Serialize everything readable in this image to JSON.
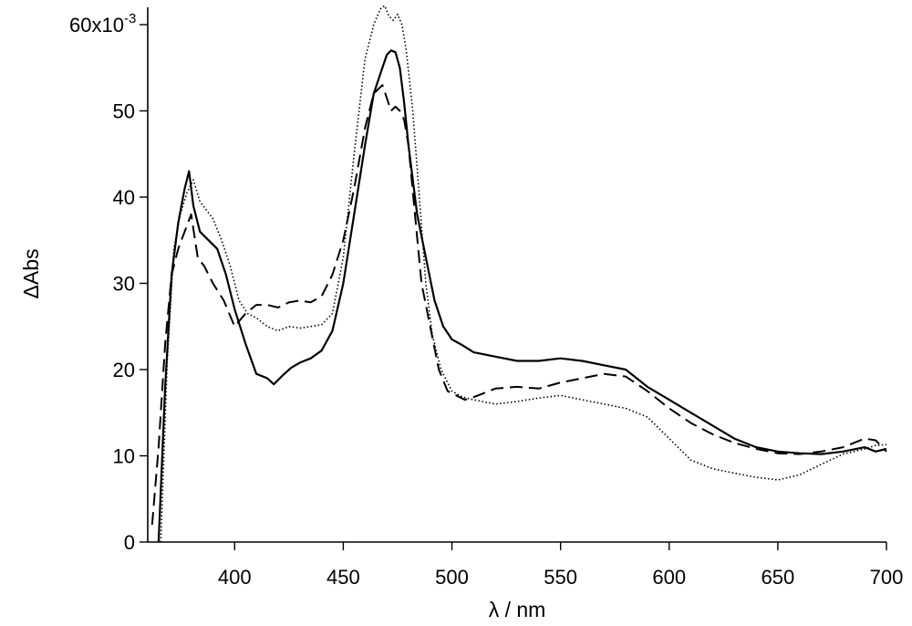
{
  "chart_data": {
    "type": "line",
    "xlabel": "λ / nm",
    "ylabel": "ΔAbs",
    "xlim": [
      360,
      700
    ],
    "ylim": [
      0,
      0.06
    ],
    "x_ticks": [
      400,
      450,
      500,
      550,
      600,
      650,
      700
    ],
    "y_ticks": [
      {
        "value": 0,
        "label": "0"
      },
      {
        "value": 0.01,
        "label": "10"
      },
      {
        "value": 0.02,
        "label": "20"
      },
      {
        "value": 0.03,
        "label": "30"
      },
      {
        "value": 0.04,
        "label": "40"
      },
      {
        "value": 0.05,
        "label": "50"
      },
      {
        "value": 0.06,
        "label": "60x10"
      }
    ],
    "y_exponent": "-3",
    "legend": "none",
    "grid": false,
    "series": [
      {
        "style": "solid",
        "x": [
          365,
          368,
          371,
          374,
          377,
          379,
          381,
          384,
          388,
          392,
          396,
          400,
          405,
          410,
          415,
          418,
          422,
          426,
          430,
          435,
          440,
          445,
          450,
          455,
          460,
          464,
          468,
          470,
          472,
          474,
          476,
          478,
          480,
          484,
          488,
          492,
          496,
          500,
          505,
          510,
          520,
          530,
          540,
          550,
          560,
          570,
          580,
          590,
          600,
          610,
          620,
          630,
          640,
          650,
          660,
          670,
          680,
          690,
          695,
          700
        ],
        "y": [
          0.0,
          0.018,
          0.031,
          0.037,
          0.041,
          0.043,
          0.039,
          0.036,
          0.035,
          0.034,
          0.031,
          0.027,
          0.023,
          0.0195,
          0.019,
          0.0183,
          0.0193,
          0.0202,
          0.0208,
          0.0213,
          0.0222,
          0.0245,
          0.03,
          0.038,
          0.046,
          0.052,
          0.055,
          0.0565,
          0.057,
          0.0568,
          0.055,
          0.051,
          0.046,
          0.038,
          0.033,
          0.028,
          0.025,
          0.0235,
          0.0228,
          0.022,
          0.0215,
          0.021,
          0.021,
          0.0213,
          0.021,
          0.0205,
          0.02,
          0.018,
          0.0165,
          0.015,
          0.0135,
          0.012,
          0.011,
          0.0105,
          0.0103,
          0.0102,
          0.0105,
          0.011,
          0.0105,
          0.0108
        ]
      },
      {
        "style": "dashed",
        "x": [
          362,
          365,
          368,
          371,
          374,
          377,
          380,
          383,
          386,
          390,
          395,
          400,
          405,
          410,
          415,
          420,
          425,
          430,
          435,
          440,
          445,
          450,
          455,
          460,
          464,
          468,
          470,
          472,
          474,
          476,
          478,
          480,
          483,
          486,
          490,
          494,
          498,
          502,
          506,
          510,
          520,
          530,
          540,
          550,
          560,
          570,
          580,
          590,
          600,
          610,
          620,
          630,
          640,
          650,
          660,
          670,
          680,
          690,
          695,
          700
        ],
        "y": [
          0.002,
          0.011,
          0.023,
          0.031,
          0.034,
          0.036,
          0.038,
          0.033,
          0.032,
          0.03,
          0.028,
          0.025,
          0.0265,
          0.0275,
          0.0275,
          0.0272,
          0.0278,
          0.028,
          0.0278,
          0.0285,
          0.031,
          0.035,
          0.041,
          0.048,
          0.052,
          0.053,
          0.0515,
          0.05,
          0.0505,
          0.05,
          0.049,
          0.046,
          0.038,
          0.03,
          0.025,
          0.02,
          0.0175,
          0.017,
          0.0165,
          0.0168,
          0.0178,
          0.018,
          0.0178,
          0.0185,
          0.019,
          0.0195,
          0.0192,
          0.0175,
          0.0155,
          0.0138,
          0.0125,
          0.0115,
          0.0108,
          0.0103,
          0.0102,
          0.0105,
          0.011,
          0.012,
          0.0118,
          0.0105
        ]
      },
      {
        "style": "dotted",
        "x": [
          366,
          369,
          372,
          375,
          378,
          381,
          384,
          387,
          390,
          394,
          398,
          402,
          406,
          410,
          415,
          420,
          425,
          430,
          435,
          440,
          445,
          450,
          455,
          460,
          464,
          467,
          469,
          471,
          473,
          475,
          477,
          479,
          482,
          485,
          488,
          491,
          495,
          500,
          505,
          510,
          520,
          530,
          540,
          550,
          560,
          570,
          580,
          590,
          600,
          610,
          620,
          630,
          640,
          650,
          660,
          670,
          680,
          690,
          695,
          700
        ],
        "y": [
          0.0,
          0.021,
          0.034,
          0.038,
          0.0405,
          0.042,
          0.0395,
          0.0385,
          0.0375,
          0.035,
          0.032,
          0.028,
          0.0265,
          0.026,
          0.025,
          0.0245,
          0.025,
          0.0248,
          0.025,
          0.0252,
          0.0265,
          0.033,
          0.045,
          0.056,
          0.06,
          0.0618,
          0.0622,
          0.061,
          0.0605,
          0.0612,
          0.06,
          0.057,
          0.05,
          0.04,
          0.03,
          0.024,
          0.02,
          0.0175,
          0.0168,
          0.0165,
          0.016,
          0.0163,
          0.0167,
          0.017,
          0.0165,
          0.016,
          0.0155,
          0.0145,
          0.012,
          0.0095,
          0.0085,
          0.008,
          0.0075,
          0.0072,
          0.0078,
          0.009,
          0.0102,
          0.0108,
          0.0112,
          0.0113
        ]
      }
    ]
  }
}
